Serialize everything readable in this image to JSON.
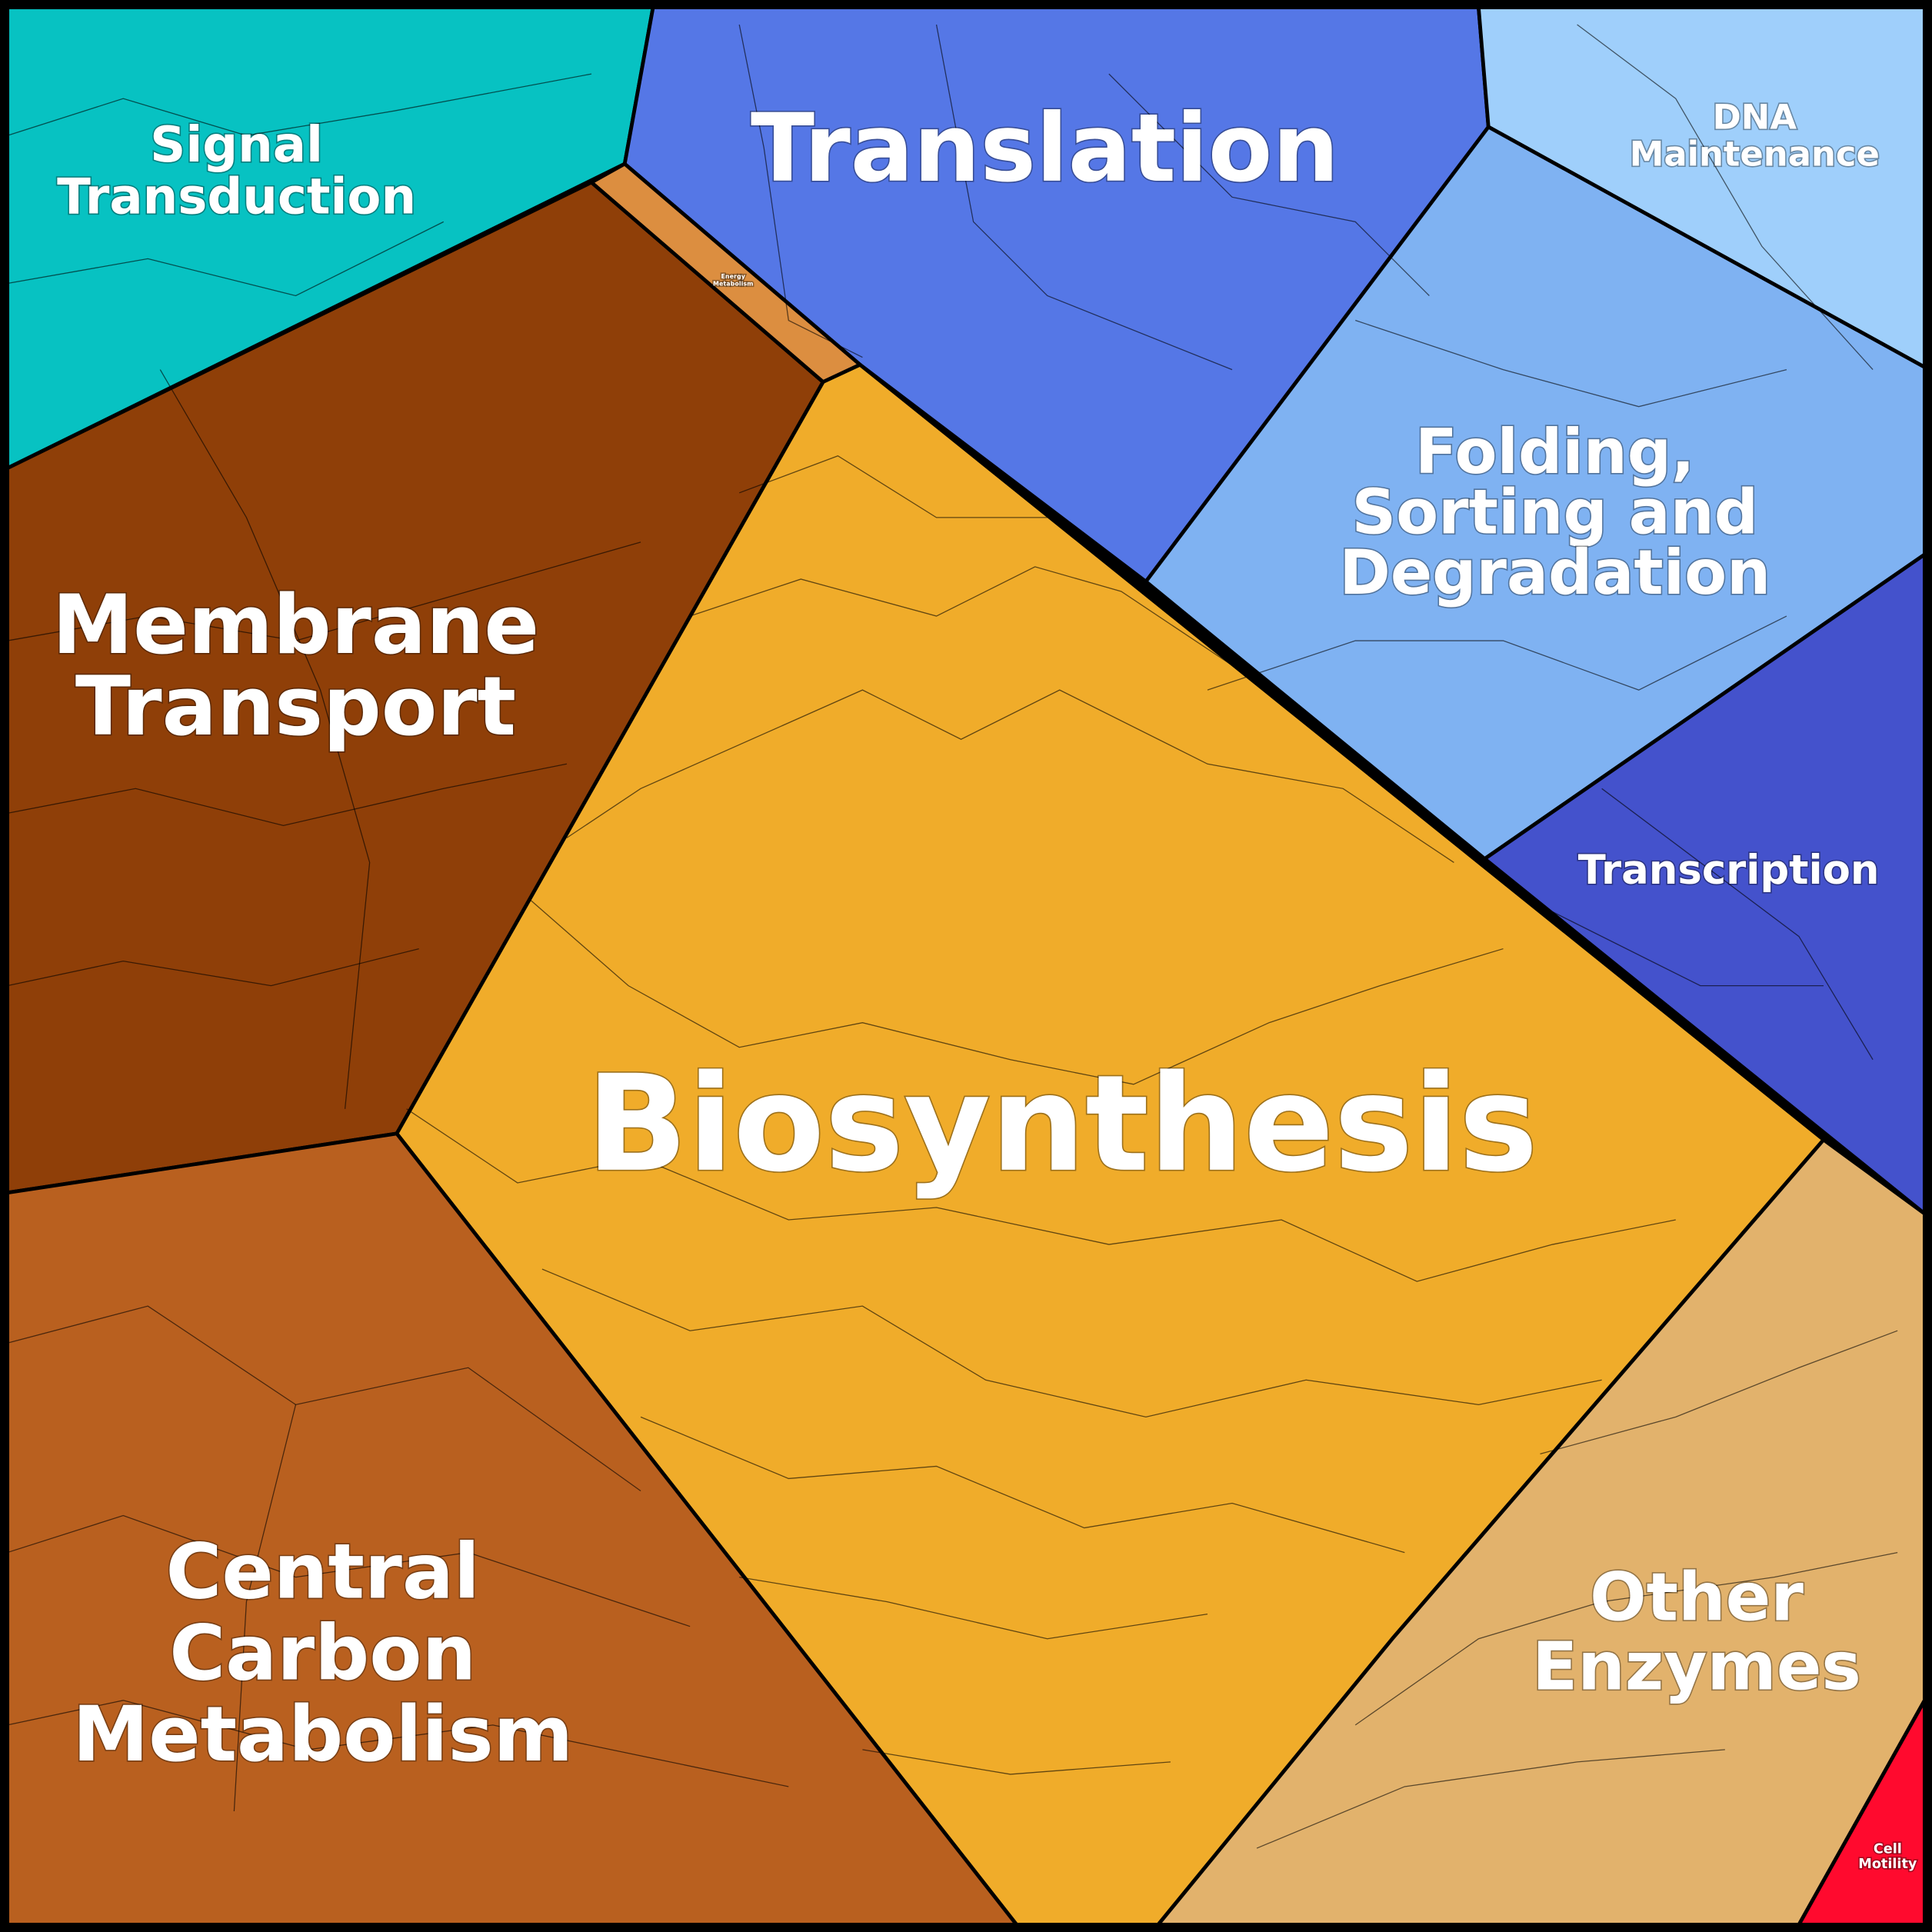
{
  "regions": [
    {
      "label": [
        "Signal",
        "Transduction"
      ]
    },
    {
      "label": [
        "Translation"
      ]
    },
    {
      "label": [
        "DNA",
        "Maintenance"
      ]
    },
    {
      "label": [
        "Folding,",
        "Sorting and",
        "Degradation"
      ]
    },
    {
      "label": [
        "Transcription"
      ]
    },
    {
      "label": [
        "Membrane",
        "Transport"
      ]
    },
    {
      "label": [
        "Energy",
        "Metabolism"
      ]
    },
    {
      "label": [
        "Biosynthesis"
      ]
    },
    {
      "label": [
        "Central",
        "Carbon",
        "Metabolism"
      ]
    },
    {
      "label": [
        "Other",
        "Enzymes"
      ]
    },
    {
      "label": [
        "Cell",
        "Motility"
      ]
    }
  ]
}
